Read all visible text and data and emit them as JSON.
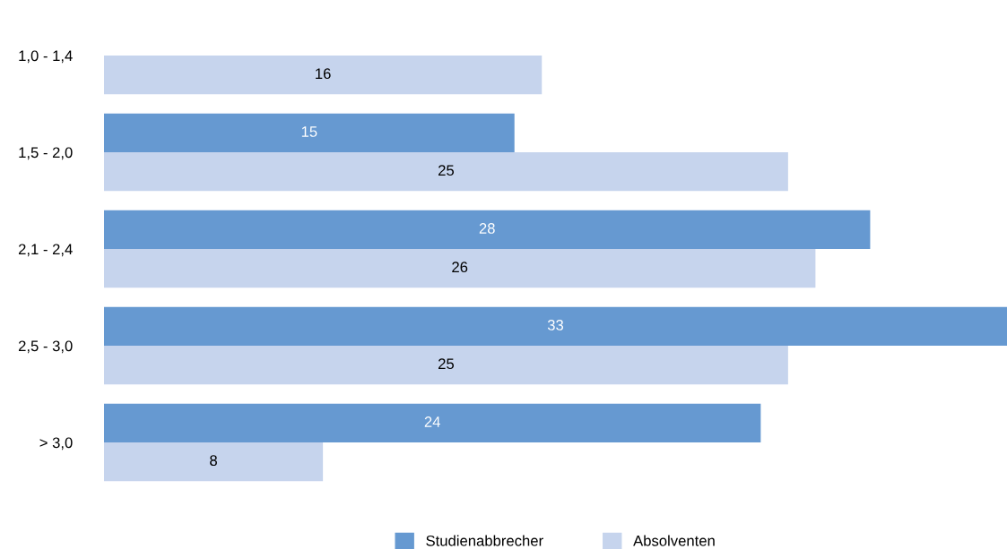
{
  "chart_data": {
    "type": "bar",
    "orientation": "horizontal",
    "categories": [
      "1,0 - 1,4",
      "1,5 - 2,0",
      "2,1 - 2,4",
      "2,5 - 3,0",
      "> 3,0"
    ],
    "series": [
      {
        "name": "Studienabbrecher",
        "color": "#6699d1",
        "values": [
          null,
          15,
          28,
          33,
          24
        ]
      },
      {
        "name": "Absolventen",
        "color": "#c6d4ed",
        "values": [
          16,
          25,
          26,
          25,
          8
        ]
      }
    ],
    "data_labels": true,
    "legend": "bottom"
  }
}
